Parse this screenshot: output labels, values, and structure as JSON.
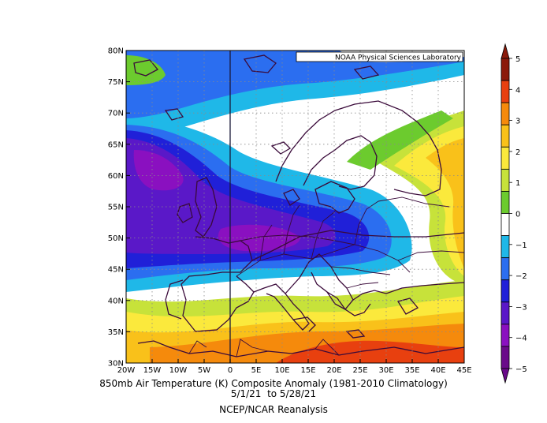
{
  "map": {
    "credit": "NOAA Physical Sciences Laboratory",
    "lon_ticks": [
      "20W",
      "15W",
      "10W",
      "5W",
      "0",
      "5E",
      "10E",
      "15E",
      "20E",
      "25E",
      "30E",
      "35E",
      "40E",
      "45E"
    ],
    "lat_ticks": [
      "80N",
      "75N",
      "70N",
      "65N",
      "60N",
      "55N",
      "50N",
      "45N",
      "40N",
      "35N",
      "30N"
    ],
    "lon_range": [
      -20,
      45
    ],
    "lat_range": [
      30,
      80
    ]
  },
  "colorbar": {
    "labels": [
      "5",
      "4",
      "3",
      "2",
      "1",
      "0",
      "−1",
      "−2",
      "−3",
      "−4",
      "−5"
    ],
    "colors": [
      "#8b1a0a",
      "#e8400f",
      "#f58a0c",
      "#f9c11a",
      "#fbe93c",
      "#c7e23a",
      "#6ccb2e",
      "#ffffff",
      "#1fb8e8",
      "#2b6ef0",
      "#2020d8",
      "#5a18c8",
      "#8a10c0",
      "#6a0a8a"
    ]
  },
  "caption": {
    "line1": "850mb Air Temperature (K) Composite Anomaly (1981-2010 Climatology)",
    "line2": "5/1/21  to 5/28/21",
    "line3": "NCEP/NCAR Reanalysis"
  }
}
